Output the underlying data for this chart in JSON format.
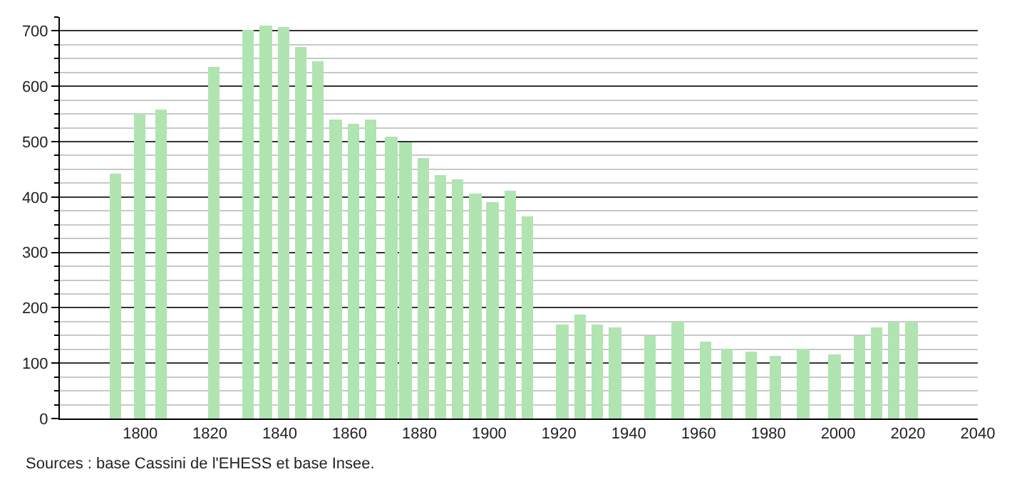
{
  "chart_data": {
    "type": "bar",
    "x": [
      1793,
      1800,
      1806,
      1821,
      1831,
      1836,
      1841,
      1846,
      1851,
      1856,
      1861,
      1866,
      1872,
      1876,
      1881,
      1886,
      1891,
      1896,
      1901,
      1906,
      1911,
      1921,
      1926,
      1931,
      1936,
      1946,
      1954,
      1962,
      1968,
      1975,
      1982,
      1990,
      1999,
      2006,
      2011,
      2016,
      2021
    ],
    "values": [
      442,
      550,
      557,
      635,
      702,
      710,
      707,
      670,
      645,
      540,
      532,
      540,
      510,
      500,
      470,
      440,
      432,
      405,
      392,
      412,
      365,
      170,
      187,
      170,
      165,
      150,
      175,
      140,
      127,
      120,
      112,
      125,
      115,
      150,
      165,
      175,
      175
    ],
    "color": "#b0e4b0",
    "xlim": [
      1777,
      2040
    ],
    "xticks": [
      1800,
      1820,
      1840,
      1860,
      1880,
      1900,
      1920,
      1940,
      1960,
      1980,
      2000,
      2020,
      2040
    ],
    "ylim": [
      0,
      725
    ],
    "yticks": [
      0,
      100,
      200,
      300,
      400,
      500,
      600,
      700
    ],
    "grid": "y",
    "annotations": [
      "Sources : base Cassini de l'EHESS et base Insee."
    ]
  }
}
